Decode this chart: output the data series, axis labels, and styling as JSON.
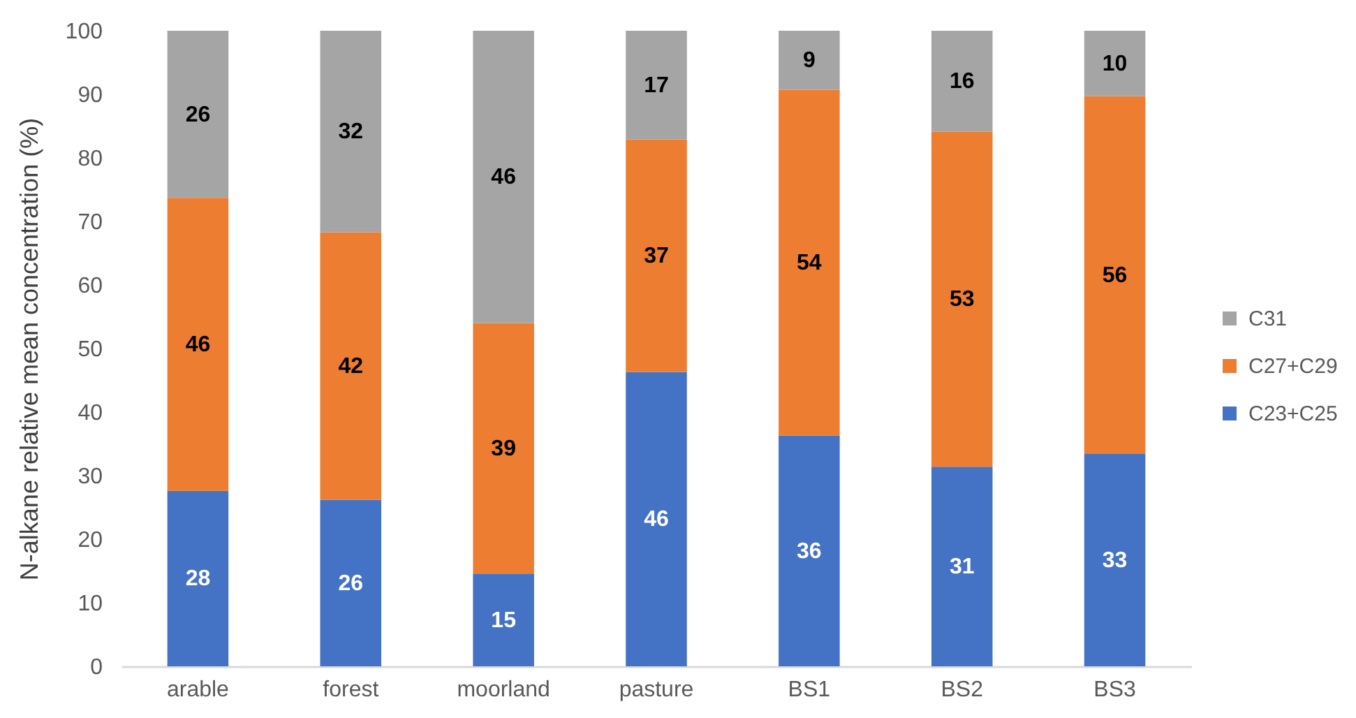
{
  "chart_data": {
    "type": "bar",
    "ylabel": "N-alkane relative mean concentration (%)",
    "categories": [
      "arable",
      "forest",
      "moorland",
      "pasture",
      "BS1",
      "BS2",
      "BS3"
    ],
    "series": [
      {
        "name": "C23+C25",
        "color": "#4472c4",
        "values": [
          27.6,
          26.2,
          14.6,
          46.3,
          36.3,
          31.4,
          33.4
        ],
        "value_labels": [
          "28",
          "26",
          "15",
          "46",
          "36",
          "31",
          "33"
        ]
      },
      {
        "name": "C27+C29",
        "color": "#ed7d31",
        "values": [
          46.1,
          42.1,
          39.4,
          36.6,
          54.4,
          52.7,
          56.3
        ],
        "value_labels": [
          "46",
          "42",
          "39",
          "37",
          "54",
          "53",
          "56"
        ]
      },
      {
        "name": "C31",
        "color": "#a5a5a5",
        "values": [
          26.3,
          31.7,
          46.0,
          17.1,
          9.3,
          15.9,
          10.3
        ],
        "value_labels": [
          "26",
          "32",
          "46",
          "17",
          "9",
          "16",
          "10"
        ]
      }
    ],
    "stacked": true,
    "ylim": [
      0,
      100
    ],
    "yticks": [
      0,
      10,
      20,
      30,
      40,
      50,
      60,
      70,
      80,
      90,
      100
    ],
    "legend": "right"
  }
}
